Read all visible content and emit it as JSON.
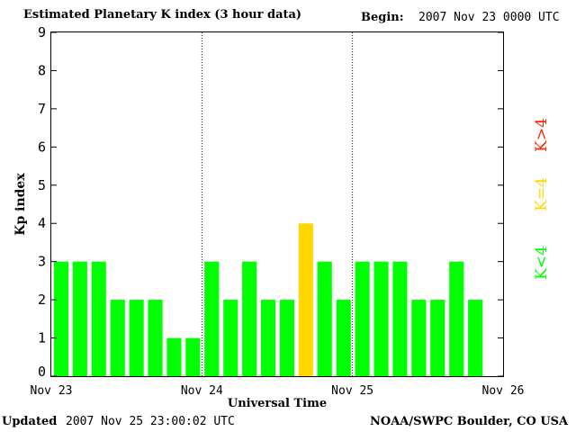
{
  "header": {
    "title": "Estimated Planetary K index (3 hour data)",
    "begin_label": "Begin:",
    "begin_value": "2007 Nov 23 0000 UTC"
  },
  "footer": {
    "updated_label": "Updated",
    "updated_value": "2007 Nov 25 23:00:02 UTC",
    "source": "NOAA/SWPC Boulder, CO USA"
  },
  "legend": {
    "high": "K>4",
    "equal": "K=4",
    "low": "K<4"
  },
  "colors": {
    "low": "#00ff00",
    "equal": "#ffd700",
    "high": "#ff2200"
  },
  "chart_data": {
    "type": "bar",
    "xlabel": "Universal Time",
    "ylabel": "Kp index",
    "ylim": [
      0,
      9
    ],
    "yticks": [
      0,
      1,
      2,
      3,
      4,
      5,
      6,
      7,
      8,
      9
    ],
    "xticks": [
      "Nov 23",
      "Nov 24",
      "Nov 25",
      "Nov 26"
    ],
    "day_separators": [
      "Nov 24",
      "Nov 25"
    ],
    "values": [
      3,
      3,
      3,
      2,
      2,
      2,
      1,
      1,
      3,
      2,
      3,
      2,
      2,
      4,
      3,
      2,
      3,
      3,
      3,
      2,
      2,
      3,
      2
    ],
    "bins_total": 24,
    "bin_hours": 3
  }
}
